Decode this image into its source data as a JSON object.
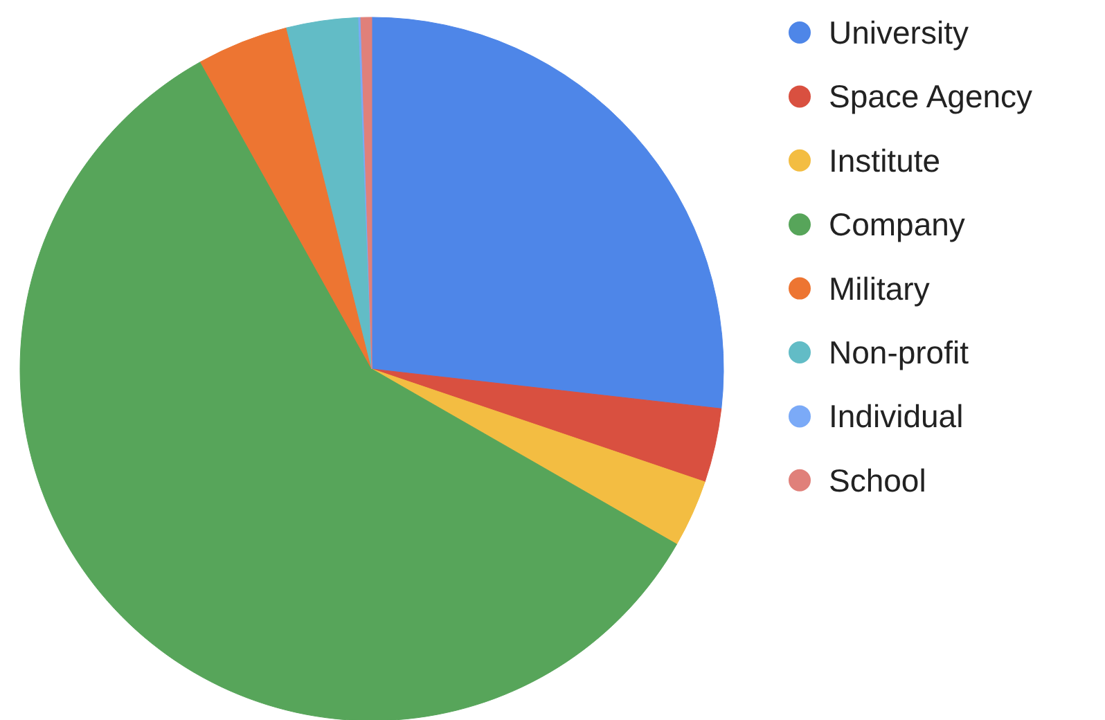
{
  "chart_data": {
    "type": "pie",
    "categories": [
      "University",
      "Space Agency",
      "Institute",
      "Company",
      "Military",
      "Non-profit",
      "Individual",
      "School"
    ],
    "values": [
      26.8,
      3.4,
      3.1,
      58.6,
      4.2,
      3.3,
      0.1,
      0.5
    ],
    "colors": [
      "#4e86e8",
      "#d95040",
      "#f3bd42",
      "#57a55a",
      "#ed7532",
      "#62bcc6",
      "#7baaf7",
      "#e0807a"
    ],
    "legend": "right"
  }
}
